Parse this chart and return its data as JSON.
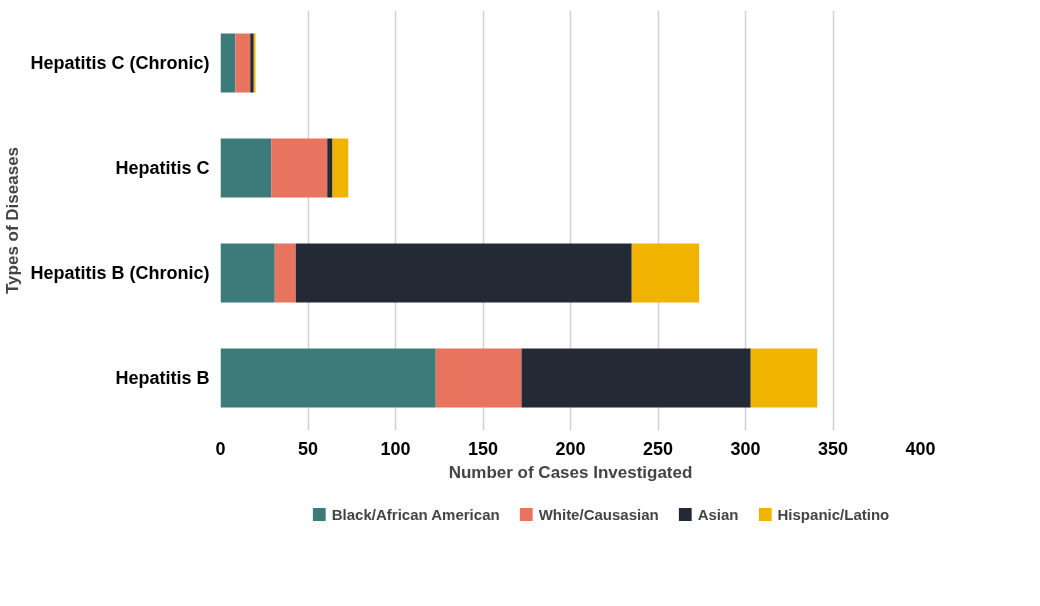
{
  "chart_data": {
    "type": "bar",
    "orientation": "horizontal",
    "stacked": true,
    "xlabel": "Number of Cases Investigated",
    "ylabel": "Types of Diseases",
    "categories": [
      "Hepatitis C (Chronic)",
      "Hepatitis C",
      "Hepatitis B (Chronic)",
      "Hepatitis B"
    ],
    "series": [
      {
        "name": "Black/African American",
        "color": "#3d7b7b",
        "values": [
          8.5,
          29,
          31,
          123
        ]
      },
      {
        "name": "White/Causasian",
        "color": "#e8735f",
        "values": [
          8.5,
          32,
          12,
          49
        ]
      },
      {
        "name": "Asian",
        "color": "#232a35",
        "values": [
          2,
          3,
          192,
          131
        ]
      },
      {
        "name": "Hispanic/Latino",
        "color": "#f0b400",
        "values": [
          1,
          9,
          38.5,
          38
        ]
      }
    ],
    "xlim": [
      0,
      400
    ],
    "xticks": [
      0,
      50,
      100,
      150,
      200,
      250,
      300,
      350,
      400
    ],
    "grid": "x",
    "legend": "bottom"
  }
}
